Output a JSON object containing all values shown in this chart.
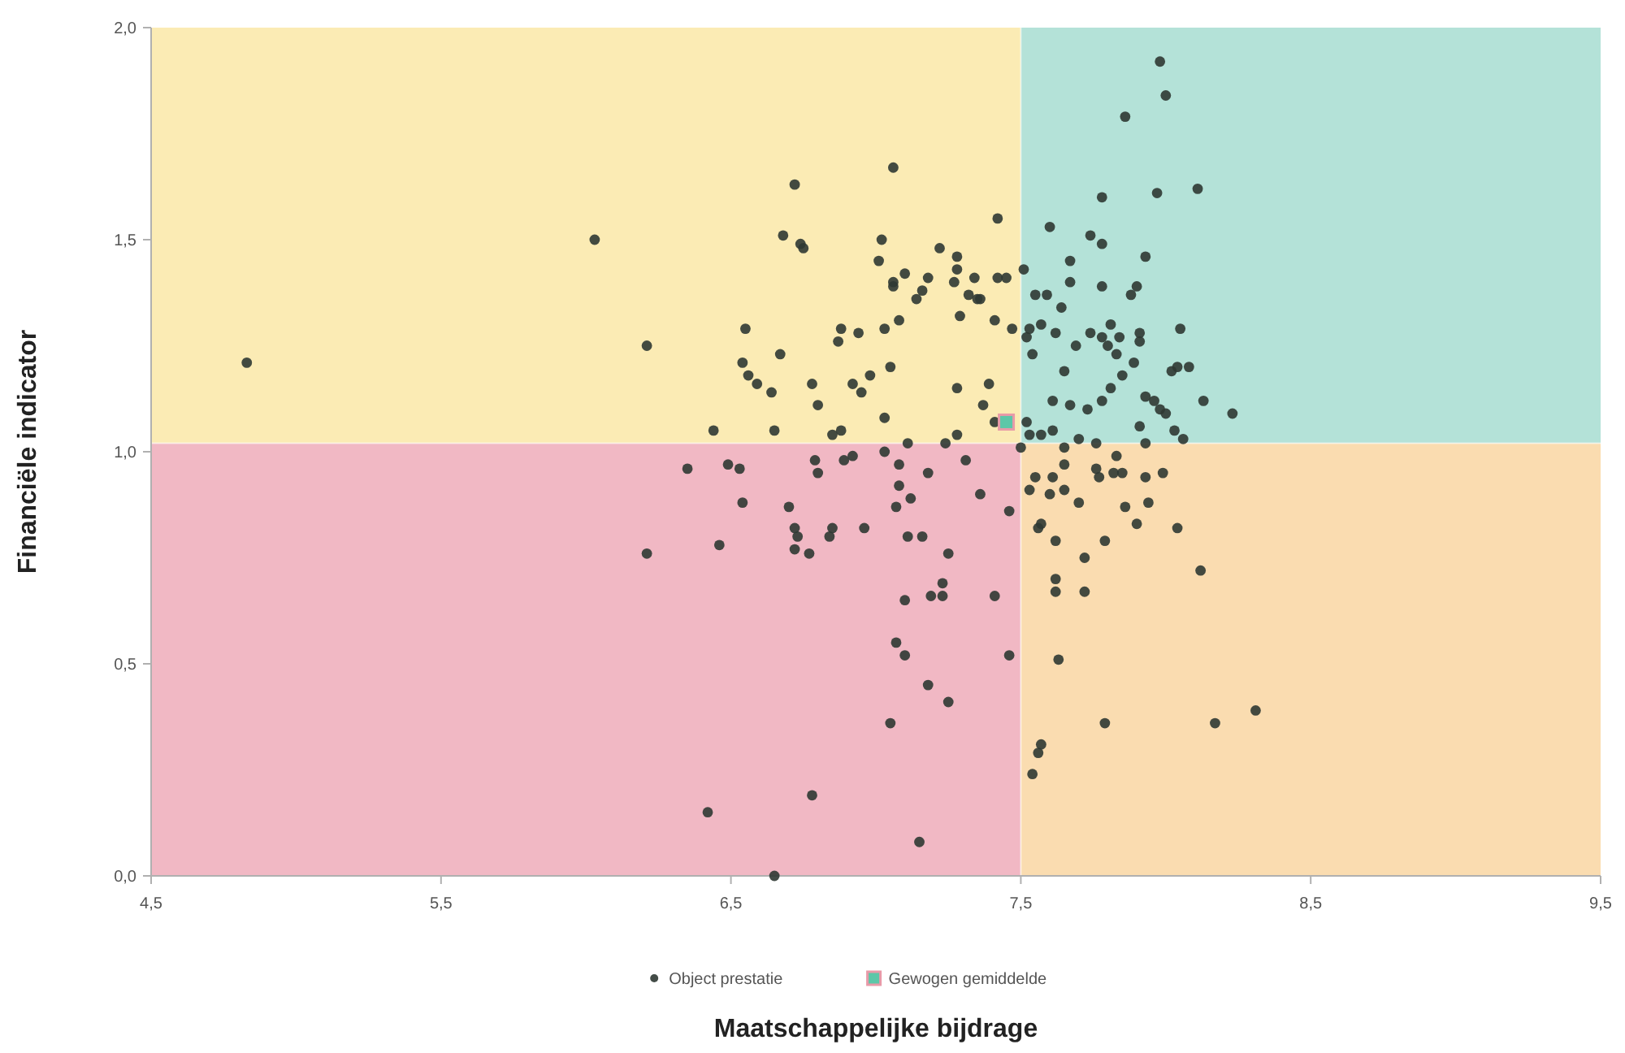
{
  "chart_data": {
    "type": "scatter",
    "xlabel": "Maatschappelijke bijdrage",
    "ylabel": "Financiële indicator",
    "xlim": [
      4.5,
      9.5
    ],
    "ylim": [
      0,
      2
    ],
    "xticks": [
      {
        "value": 4.5,
        "label": "4,5"
      },
      {
        "value": 5.5,
        "label": "5,5"
      },
      {
        "value": 6.5,
        "label": "6,5"
      },
      {
        "value": 7.5,
        "label": "7,5"
      },
      {
        "value": 8.5,
        "label": "8,5"
      },
      {
        "value": 9.5,
        "label": "9,5"
      }
    ],
    "yticks": [
      {
        "value": 0,
        "label": "0,0"
      },
      {
        "value": 0.5,
        "label": "0,5"
      },
      {
        "value": 1,
        "label": "1,0"
      },
      {
        "value": 1.5,
        "label": "1,5"
      },
      {
        "value": 2,
        "label": "2,0"
      }
    ],
    "legend": "bottom",
    "ref_lines": [
      {
        "axis": "x",
        "value": 7.5
      },
      {
        "axis": "y",
        "value": 1.02
      }
    ],
    "bands": [
      {
        "axis": "y",
        "from": 1.02,
        "to": 2,
        "color": "#fbebb4"
      },
      {
        "axis": "y",
        "from": 1.02,
        "to": 2,
        "color": "#b4e2d8"
      },
      {
        "axis": "y",
        "from": 0,
        "to": 1.02,
        "color": "#f1b8c4"
      },
      {
        "axis": "y",
        "from": 0,
        "to": 1.02,
        "color": "#fadcb0"
      }
    ],
    "series": [
      {
        "name": "Object prestatie",
        "color": "#2f3833",
        "marker": "circle",
        "x": [
          4.83,
          6.03,
          6.21,
          6.21,
          7.06,
          6.72,
          6.68,
          6.74,
          6.75,
          7.02,
          7.01,
          7.42,
          7.22,
          7.28,
          7.06,
          7.06,
          7.1,
          7.18,
          7.28,
          7.27,
          7.34,
          7.42,
          7.45,
          7.16,
          7.14,
          7.32,
          7.35,
          7.36,
          6.55,
          6.88,
          6.87,
          6.94,
          7.03,
          7.08,
          7.29,
          7.41,
          7.47,
          6.67,
          6.54,
          6.56,
          6.59,
          6.64,
          6.78,
          6.92,
          6.95,
          6.98,
          7.05,
          6.8,
          7.28,
          7.39,
          7.37,
          7.41,
          7.03,
          6.44,
          6.65,
          6.85,
          6.88,
          7.11,
          7.24,
          7.28,
          7.98,
          8.0,
          7.86,
          7.78,
          7.97,
          8.11,
          7.6,
          7.74,
          7.78,
          7.67,
          7.93,
          7.51,
          7.67,
          7.78,
          7.9,
          7.88,
          7.55,
          7.59,
          7.64,
          7.53,
          7.57,
          7.52,
          7.54,
          7.62,
          7.69,
          7.74,
          7.81,
          7.78,
          7.8,
          7.83,
          7.84,
          7.91,
          7.91,
          7.89,
          8.05,
          7.85,
          7.65,
          8.02,
          8.04,
          8.08,
          7.81,
          8.13,
          8.23,
          7.61,
          7.67,
          7.73,
          7.78,
          7.93,
          7.96,
          7.98,
          8.0,
          7.52,
          7.53,
          7.57,
          7.61,
          7.65,
          7.7,
          7.76,
          7.91,
          7.93,
          8.03,
          8.06,
          7.5,
          7.65,
          7.55,
          7.53,
          7.61,
          7.6,
          7.65,
          7.76,
          7.77,
          7.83,
          7.82,
          7.85,
          7.93,
          7.99,
          7.7,
          7.86,
          7.94,
          7.57,
          7.56,
          7.62,
          7.9,
          8.04,
          7.79,
          7.72,
          8.12,
          7.62,
          7.62,
          7.72,
          7.63,
          7.79,
          8.17,
          8.31,
          7.57,
          7.56,
          7.54,
          7.46,
          7.46,
          7.03,
          6.35,
          6.49,
          6.53,
          6.79,
          6.8,
          6.89,
          6.92,
          7.08,
          7.08,
          7.18,
          7.31,
          7.12,
          7.07,
          7.36,
          6.54,
          6.7,
          6.72,
          6.73,
          6.72,
          6.77,
          6.85,
          6.84,
          6.96,
          7.11,
          7.16,
          6.46,
          7.25,
          7.23,
          7.19,
          7.23,
          7.1,
          7.41,
          7.07,
          7.1,
          7.18,
          7.25,
          7.05,
          6.78,
          6.42,
          7.15,
          6.65
        ],
        "values": [
          1.21,
          1.5,
          1.25,
          0.76,
          1.67,
          1.63,
          1.51,
          1.49,
          1.48,
          1.5,
          1.45,
          1.55,
          1.48,
          1.46,
          1.4,
          1.39,
          1.42,
          1.41,
          1.43,
          1.4,
          1.41,
          1.41,
          1.41,
          1.38,
          1.36,
          1.37,
          1.36,
          1.36,
          1.29,
          1.29,
          1.26,
          1.28,
          1.29,
          1.31,
          1.32,
          1.31,
          1.29,
          1.23,
          1.21,
          1.18,
          1.16,
          1.14,
          1.16,
          1.16,
          1.14,
          1.18,
          1.2,
          1.11,
          1.15,
          1.16,
          1.11,
          1.07,
          1.08,
          1.05,
          1.05,
          1.04,
          1.05,
          1.02,
          1.02,
          1.04,
          1.92,
          1.84,
          1.79,
          1.6,
          1.61,
          1.62,
          1.53,
          1.51,
          1.49,
          1.45,
          1.46,
          1.43,
          1.4,
          1.39,
          1.39,
          1.37,
          1.37,
          1.37,
          1.34,
          1.29,
          1.3,
          1.27,
          1.23,
          1.28,
          1.25,
          1.28,
          1.3,
          1.27,
          1.25,
          1.23,
          1.27,
          1.28,
          1.26,
          1.21,
          1.29,
          1.18,
          1.19,
          1.19,
          1.2,
          1.2,
          1.15,
          1.12,
          1.09,
          1.12,
          1.11,
          1.1,
          1.12,
          1.13,
          1.12,
          1.1,
          1.09,
          1.07,
          1.04,
          1.04,
          1.05,
          1.01,
          1.03,
          1.02,
          1.06,
          1.02,
          1.05,
          1.03,
          1.01,
          0.97,
          0.94,
          0.91,
          0.94,
          0.9,
          0.91,
          0.96,
          0.94,
          0.99,
          0.95,
          0.95,
          0.94,
          0.95,
          0.88,
          0.87,
          0.88,
          0.83,
          0.82,
          0.79,
          0.83,
          0.82,
          0.79,
          0.75,
          0.72,
          0.7,
          0.67,
          0.67,
          0.51,
          0.36,
          0.36,
          0.39,
          0.31,
          0.29,
          0.24,
          0.86,
          0.52,
          1.0,
          0.96,
          0.97,
          0.96,
          0.98,
          0.95,
          0.98,
          0.99,
          0.97,
          0.92,
          0.95,
          0.98,
          0.89,
          0.87,
          0.9,
          0.88,
          0.87,
          0.82,
          0.8,
          0.77,
          0.76,
          0.82,
          0.8,
          0.82,
          0.8,
          0.8,
          0.78,
          0.76,
          0.69,
          0.66,
          0.66,
          0.65,
          0.66,
          0.55,
          0.52,
          0.45,
          0.41,
          0.36,
          0.19,
          0.15,
          0.08,
          0.0
        ]
      },
      {
        "name": "Gewogen gemiddelde",
        "color": "#5cc7a8",
        "marker": "square",
        "x": [
          7.45
        ],
        "values": [
          1.07
        ]
      }
    ]
  }
}
